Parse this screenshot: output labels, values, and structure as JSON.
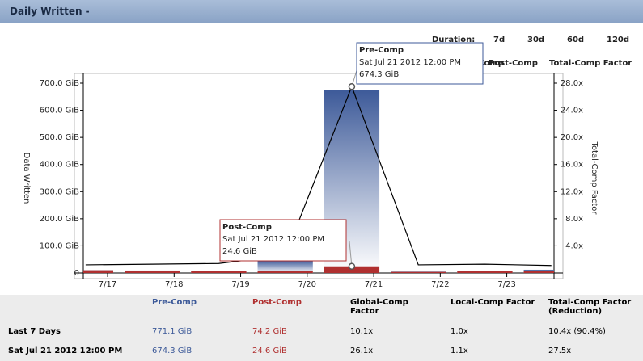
{
  "header": {
    "title": "Daily Written -"
  },
  "duration": {
    "label": "Duration:",
    "options": [
      "7d",
      "30d",
      "60d",
      "120d"
    ],
    "selected": 0
  },
  "chart_data": {
    "type": "bar",
    "x": [
      -0.33,
      0.67,
      1.67,
      2.67,
      3.67,
      4.67,
      5.67,
      6.67
    ],
    "xlim": [
      -0.365,
      6.71
    ],
    "xticks": [
      {
        "value": 0,
        "label": "7/17"
      },
      {
        "value": 1,
        "label": "7/18"
      },
      {
        "value": 2,
        "label": "7/19"
      },
      {
        "value": 3,
        "label": "7/20"
      },
      {
        "value": 4,
        "label": "7/21"
      },
      {
        "value": 5,
        "label": "7/22"
      },
      {
        "value": 6,
        "label": "7/23"
      }
    ],
    "ylabel": "Data Written",
    "y2label": "Total-Comp Factor",
    "ylim": [
      0,
      700
    ],
    "yticks": [
      0,
      {
        "value": 100,
        "label": "100.0 GiB"
      },
      {
        "value": 200,
        "label": "200.0 GiB"
      },
      {
        "value": 300,
        "label": "300.0 GiB"
      },
      {
        "value": 400,
        "label": "400.0 GiB"
      },
      {
        "value": 500,
        "label": "500.0 GiB"
      },
      {
        "value": 600,
        "label": "600.0 GiB"
      },
      {
        "value": 700,
        "label": "700.0 GiB"
      }
    ],
    "y2lim": [
      0,
      28
    ],
    "y2ticks": [
      {
        "value": 4,
        "label": "4.0x"
      },
      {
        "value": 8,
        "label": "8.0x"
      },
      {
        "value": 12,
        "label": "12.0x"
      },
      {
        "value": 16,
        "label": "16.0x"
      },
      {
        "value": 20,
        "label": "20.0x"
      },
      {
        "value": 24,
        "label": "24.0x"
      },
      {
        "value": 28,
        "label": "28.0x"
      }
    ],
    "series": [
      {
        "name": "Pre-Comp",
        "color": "#3d5a99",
        "values": [
          10,
          9,
          8,
          44.7,
          674.3,
          5,
          7,
          12
        ]
      },
      {
        "name": "Post-Comp",
        "color": "#b03030",
        "values": [
          10,
          9,
          6.6,
          6,
          24.6,
          4,
          6,
          8
        ]
      },
      {
        "name": "Total-Comp Factor",
        "color": "#000000",
        "axis": "y2",
        "type": "line",
        "values": [
          1.2,
          1.3,
          1.4,
          2.6,
          27.5,
          1.2,
          1.3,
          1.1
        ]
      }
    ],
    "tooltips": [
      {
        "series": "Pre-Comp",
        "date": "Sat Jul 21 2012 12:00 PM",
        "value": "674.3 GiB"
      },
      {
        "series": "Post-Comp",
        "date": "Sat Jul 21 2012 12:00 PM",
        "value": "24.6 GiB"
      }
    ]
  },
  "table": {
    "header": [
      "Pre-Comp",
      "Post-Comp",
      "Global-Comp Factor",
      "Local-Comp Factor",
      "Total-Comp Factor (Reduction)"
    ],
    "rows": [
      [
        "Last 7 Days",
        "771.1 GiB",
        "74.2 GiB",
        "10.1x",
        "1.0x",
        "10.4x (90.4%)"
      ],
      [
        "Sat Jul 21 2012 12:00 PM",
        "674.3 GiB",
        "24.6 GiB",
        "26.1x",
        "1.1x",
        "27.5x"
      ]
    ]
  }
}
